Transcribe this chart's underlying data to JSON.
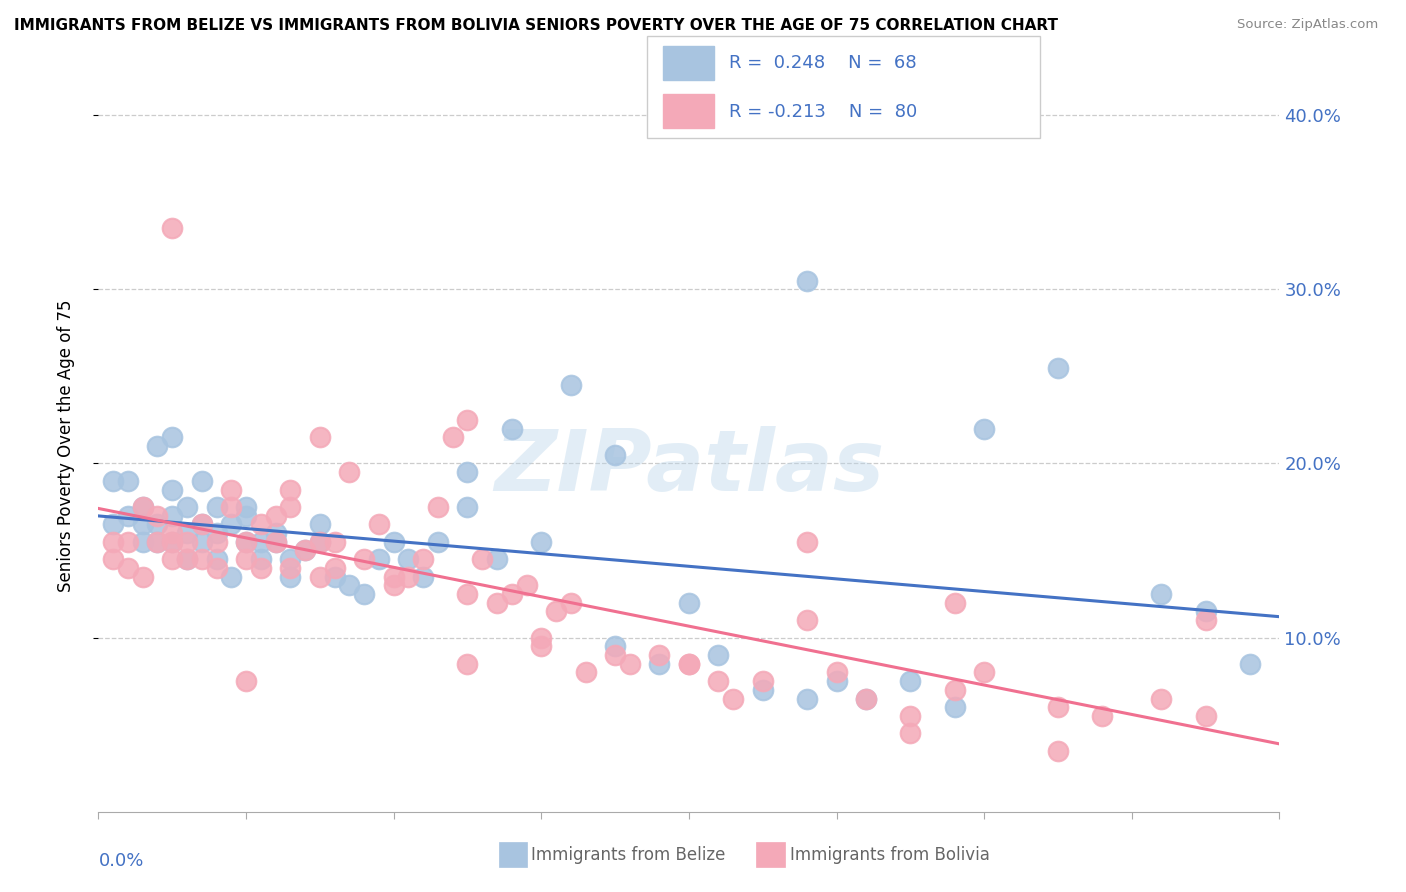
{
  "title": "IMMIGRANTS FROM BELIZE VS IMMIGRANTS FROM BOLIVIA SENIORS POVERTY OVER THE AGE OF 75 CORRELATION CHART",
  "source": "Source: ZipAtlas.com",
  "ylabel": "Seniors Poverty Over the Age of 75",
  "belize_color": "#a8c4e0",
  "bolivia_color": "#f4a9b8",
  "belize_line_color": "#4472c4",
  "bolivia_line_color": "#f07090",
  "R_belize": 0.248,
  "N_belize": 68,
  "R_bolivia": -0.213,
  "N_bolivia": 80,
  "watermark": "ZIPatlas",
  "belize_scatter_x": [
    0.001,
    0.001,
    0.002,
    0.002,
    0.003,
    0.003,
    0.003,
    0.004,
    0.004,
    0.004,
    0.005,
    0.005,
    0.005,
    0.005,
    0.006,
    0.006,
    0.006,
    0.007,
    0.007,
    0.007,
    0.008,
    0.008,
    0.008,
    0.009,
    0.009,
    0.01,
    0.01,
    0.01,
    0.011,
    0.011,
    0.012,
    0.012,
    0.013,
    0.013,
    0.014,
    0.015,
    0.015,
    0.016,
    0.017,
    0.018,
    0.019,
    0.02,
    0.021,
    0.022,
    0.023,
    0.025,
    0.025,
    0.027,
    0.028,
    0.03,
    0.032,
    0.035,
    0.038,
    0.04,
    0.042,
    0.045,
    0.048,
    0.05,
    0.052,
    0.055,
    0.058,
    0.06,
    0.065,
    0.072,
    0.075,
    0.078,
    0.048,
    0.035
  ],
  "belize_scatter_y": [
    0.19,
    0.165,
    0.19,
    0.17,
    0.175,
    0.165,
    0.155,
    0.21,
    0.165,
    0.155,
    0.215,
    0.185,
    0.17,
    0.155,
    0.175,
    0.16,
    0.145,
    0.165,
    0.155,
    0.19,
    0.175,
    0.16,
    0.145,
    0.165,
    0.135,
    0.175,
    0.17,
    0.155,
    0.145,
    0.155,
    0.155,
    0.16,
    0.145,
    0.135,
    0.15,
    0.165,
    0.155,
    0.135,
    0.13,
    0.125,
    0.145,
    0.155,
    0.145,
    0.135,
    0.155,
    0.195,
    0.175,
    0.145,
    0.22,
    0.155,
    0.245,
    0.095,
    0.085,
    0.12,
    0.09,
    0.07,
    0.065,
    0.075,
    0.065,
    0.075,
    0.06,
    0.22,
    0.255,
    0.125,
    0.115,
    0.085,
    0.305,
    0.205
  ],
  "bolivia_scatter_x": [
    0.001,
    0.001,
    0.002,
    0.002,
    0.003,
    0.003,
    0.004,
    0.004,
    0.005,
    0.005,
    0.005,
    0.006,
    0.006,
    0.007,
    0.007,
    0.008,
    0.008,
    0.009,
    0.009,
    0.01,
    0.01,
    0.011,
    0.011,
    0.012,
    0.012,
    0.013,
    0.013,
    0.013,
    0.014,
    0.015,
    0.015,
    0.016,
    0.016,
    0.017,
    0.018,
    0.019,
    0.02,
    0.021,
    0.022,
    0.023,
    0.024,
    0.025,
    0.026,
    0.027,
    0.028,
    0.029,
    0.03,
    0.031,
    0.032,
    0.033,
    0.035,
    0.036,
    0.038,
    0.04,
    0.042,
    0.043,
    0.045,
    0.048,
    0.05,
    0.052,
    0.055,
    0.058,
    0.06,
    0.065,
    0.068,
    0.072,
    0.075,
    0.04,
    0.055,
    0.025,
    0.005,
    0.01,
    0.02,
    0.03,
    0.025,
    0.065,
    0.075,
    0.048,
    0.058,
    0.015
  ],
  "bolivia_scatter_y": [
    0.155,
    0.145,
    0.155,
    0.14,
    0.135,
    0.175,
    0.17,
    0.155,
    0.155,
    0.145,
    0.16,
    0.155,
    0.145,
    0.165,
    0.145,
    0.155,
    0.14,
    0.185,
    0.175,
    0.155,
    0.145,
    0.165,
    0.14,
    0.17,
    0.155,
    0.175,
    0.14,
    0.185,
    0.15,
    0.155,
    0.135,
    0.155,
    0.14,
    0.195,
    0.145,
    0.165,
    0.13,
    0.135,
    0.145,
    0.175,
    0.215,
    0.125,
    0.145,
    0.12,
    0.125,
    0.13,
    0.1,
    0.115,
    0.12,
    0.08,
    0.09,
    0.085,
    0.09,
    0.085,
    0.075,
    0.065,
    0.075,
    0.11,
    0.08,
    0.065,
    0.055,
    0.07,
    0.08,
    0.06,
    0.055,
    0.065,
    0.11,
    0.085,
    0.045,
    0.225,
    0.335,
    0.075,
    0.135,
    0.095,
    0.085,
    0.035,
    0.055,
    0.155,
    0.12,
    0.215
  ]
}
